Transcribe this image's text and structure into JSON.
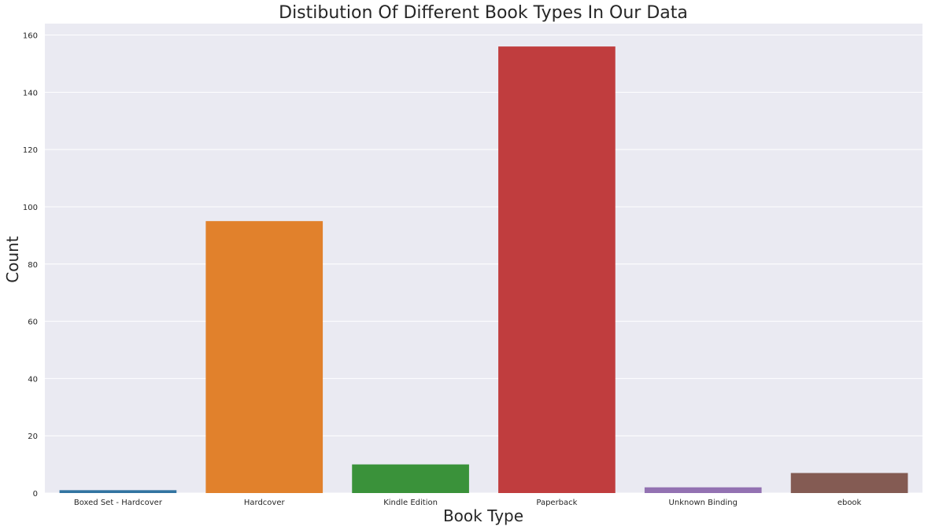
{
  "chart_data": {
    "type": "bar",
    "title": "Distibution Of Different Book Types In Our Data",
    "xlabel": "Book Type",
    "ylabel": "Count",
    "categories": [
      "Boxed Set - Hardcover",
      "Hardcover",
      "Kindle Edition",
      "Paperback",
      "Unknown Binding",
      "ebook"
    ],
    "values": [
      1,
      95,
      10,
      156,
      2,
      7
    ],
    "colors": [
      "#3274a1",
      "#e1812c",
      "#3a923a",
      "#c03d3e",
      "#9372b2",
      "#845b53"
    ],
    "ylim": [
      0,
      164
    ],
    "yticks": [
      0,
      20,
      40,
      60,
      80,
      100,
      120,
      140,
      160
    ],
    "grid": true,
    "background_color": "#eaeaf2",
    "grid_color": "#ffffff"
  }
}
